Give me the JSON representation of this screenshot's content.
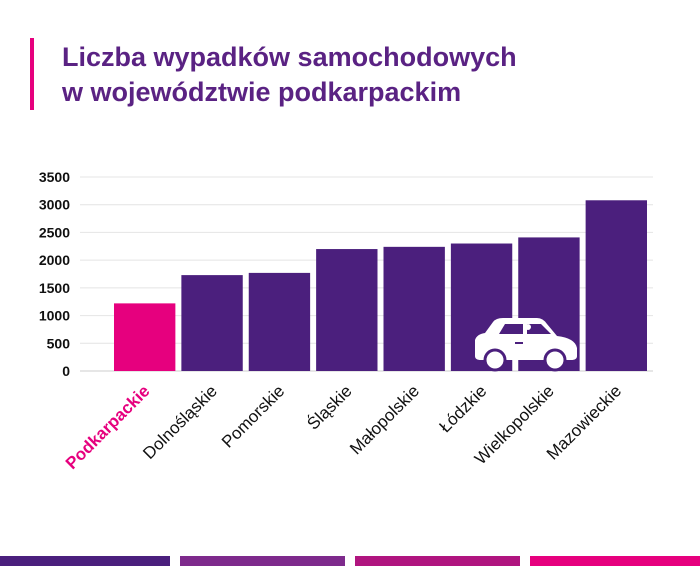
{
  "title": {
    "line1": "Liczba wypadków samochodowych",
    "line2": "w województwie podkarpackim"
  },
  "colors": {
    "accent": "#e6007e",
    "title": "#5a2283",
    "bar_default": "#4b1f7d",
    "bar_highlight": "#e6007e",
    "axis_text": "#111111",
    "grid": "#e4e4e4"
  },
  "car_icon": "car-icon",
  "chart_data": {
    "type": "bar",
    "title": "Liczba wypadków samochodowych w województwie podkarpackim",
    "xlabel": "",
    "ylabel": "",
    "categories": [
      "Podkarpackie",
      "Dolnośląskie",
      "Pomorskie",
      "Śląskie",
      "Małopolskie",
      "Łódzkie",
      "Wielkopolskie",
      "Mazowieckie"
    ],
    "values": [
      1220,
      1730,
      1770,
      2200,
      2240,
      2300,
      2410,
      3080
    ],
    "highlight": "Podkarpackie",
    "ylim": [
      0,
      3500
    ],
    "yticks": [
      "0",
      "500",
      "1000",
      "1500",
      "2000",
      "2500",
      "3000",
      "3500"
    ],
    "grid": true,
    "legend": "none"
  },
  "footer_colors": [
    "#4b1f7d",
    "#7e2a8c",
    "#b0157f",
    "#e6007e"
  ]
}
